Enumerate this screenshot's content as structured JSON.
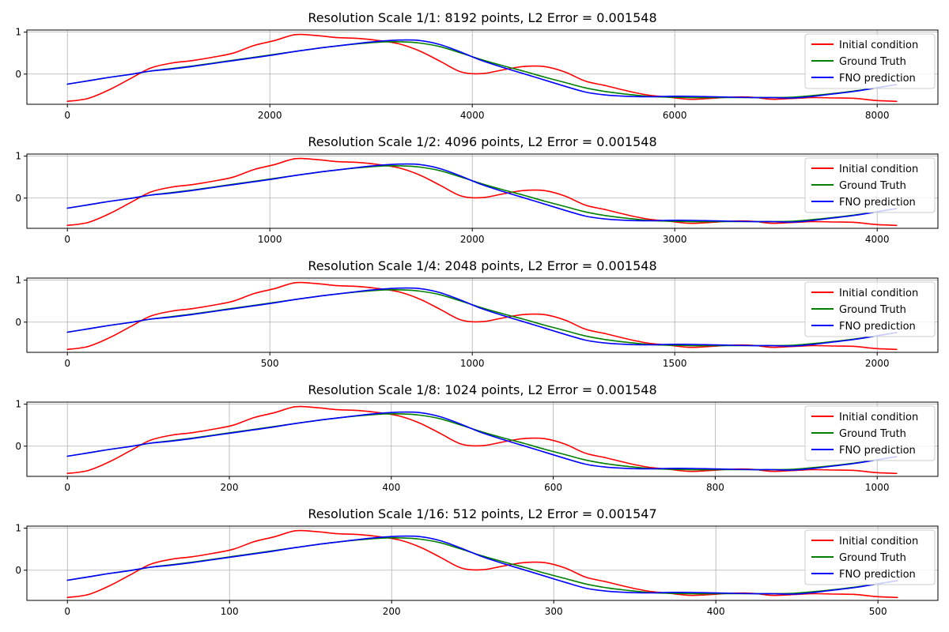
{
  "chart_data": [
    {
      "type": "line",
      "title": "Resolution Scale 1/1: 8192 points, L2 Error = 0.001548",
      "xlim": [
        -400,
        8600
      ],
      "ylim": [
        -0.72,
        1.05
      ],
      "xticks": [
        0,
        2000,
        4000,
        6000,
        8000
      ],
      "xtick_labels": [
        "0",
        "2000",
        "4000",
        "6000",
        "8000"
      ],
      "yticks": [
        1,
        0
      ],
      "ytick_labels": [
        "1",
        "0"
      ],
      "grid": true,
      "legend_position": "upper right",
      "x_max": 8192,
      "series": [
        {
          "name": "Initial condition",
          "color": "#ff0000"
        },
        {
          "name": "Ground Truth",
          "color": "#008000"
        },
        {
          "name": "FNO prediction",
          "color": "#0000ff"
        }
      ]
    },
    {
      "type": "line",
      "title": "Resolution Scale 1/2: 4096 points, L2 Error = 0.001548",
      "xlim": [
        -200,
        4300
      ],
      "ylim": [
        -0.72,
        1.05
      ],
      "xticks": [
        0,
        1000,
        2000,
        3000,
        4000
      ],
      "xtick_labels": [
        "0",
        "1000",
        "2000",
        "3000",
        "4000"
      ],
      "yticks": [
        1,
        0
      ],
      "ytick_labels": [
        "1",
        "0"
      ],
      "grid": true,
      "legend_position": "upper right",
      "x_max": 4096,
      "series": [
        {
          "name": "Initial condition",
          "color": "#ff0000"
        },
        {
          "name": "Ground Truth",
          "color": "#008000"
        },
        {
          "name": "FNO prediction",
          "color": "#0000ff"
        }
      ]
    },
    {
      "type": "line",
      "title": "Resolution Scale 1/4: 2048 points, L2 Error = 0.001548",
      "xlim": [
        -100,
        2150
      ],
      "ylim": [
        -0.72,
        1.05
      ],
      "xticks": [
        0,
        500,
        1000,
        1500,
        2000
      ],
      "xtick_labels": [
        "0",
        "500",
        "1000",
        "1500",
        "2000"
      ],
      "yticks": [
        1,
        0
      ],
      "ytick_labels": [
        "1",
        "0"
      ],
      "grid": true,
      "legend_position": "upper right",
      "x_max": 2048,
      "series": [
        {
          "name": "Initial condition",
          "color": "#ff0000"
        },
        {
          "name": "Ground Truth",
          "color": "#008000"
        },
        {
          "name": "FNO prediction",
          "color": "#0000ff"
        }
      ]
    },
    {
      "type": "line",
      "title": "Resolution Scale 1/8: 1024 points, L2 Error = 0.001548",
      "xlim": [
        -50,
        1075
      ],
      "ylim": [
        -0.72,
        1.05
      ],
      "xticks": [
        0,
        200,
        400,
        600,
        800,
        1000
      ],
      "xtick_labels": [
        "0",
        "200",
        "400",
        "600",
        "800",
        "1000"
      ],
      "yticks": [
        1,
        0
      ],
      "ytick_labels": [
        "1",
        "0"
      ],
      "grid": true,
      "legend_position": "upper right",
      "x_max": 1024,
      "series": [
        {
          "name": "Initial condition",
          "color": "#ff0000"
        },
        {
          "name": "Ground Truth",
          "color": "#008000"
        },
        {
          "name": "FNO prediction",
          "color": "#0000ff"
        }
      ]
    },
    {
      "type": "line",
      "title": "Resolution Scale 1/16: 512 points, L2 Error = 0.001547",
      "xlim": [
        -25,
        537
      ],
      "ylim": [
        -0.72,
        1.05
      ],
      "xticks": [
        0,
        100,
        200,
        300,
        400,
        500
      ],
      "xtick_labels": [
        "0",
        "100",
        "200",
        "300",
        "400",
        "500"
      ],
      "yticks": [
        1,
        0
      ],
      "ytick_labels": [
        "1",
        "0"
      ],
      "grid": true,
      "legend_position": "upper right",
      "x_max": 512,
      "series": [
        {
          "name": "Initial condition",
          "color": "#ff0000"
        },
        {
          "name": "Ground Truth",
          "color": "#008000"
        },
        {
          "name": "FNO prediction",
          "color": "#0000ff"
        }
      ]
    }
  ],
  "curve_shape_fraction": {
    "x": [
      0,
      0.025,
      0.05,
      0.075,
      0.1,
      0.125,
      0.15,
      0.175,
      0.2,
      0.225,
      0.25,
      0.275,
      0.3,
      0.325,
      0.35,
      0.375,
      0.4,
      0.425,
      0.45,
      0.475,
      0.5,
      0.525,
      0.55,
      0.575,
      0.6,
      0.625,
      0.65,
      0.675,
      0.7,
      0.725,
      0.75,
      0.775,
      0.8,
      0.825,
      0.85,
      0.875,
      0.9,
      0.925,
      0.95,
      0.975,
      1.0
    ],
    "initial_condition": [
      -0.65,
      -0.58,
      -0.38,
      -0.12,
      0.14,
      0.26,
      0.32,
      0.4,
      0.5,
      0.68,
      0.8,
      0.94,
      0.92,
      0.87,
      0.85,
      0.8,
      0.72,
      0.55,
      0.3,
      0.05,
      0.01,
      0.1,
      0.18,
      0.18,
      0.05,
      -0.17,
      -0.28,
      -0.4,
      -0.5,
      -0.55,
      -0.6,
      -0.58,
      -0.55,
      -0.55,
      -0.6,
      -0.58,
      -0.56,
      -0.57,
      -0.58,
      -0.63,
      -0.65
    ],
    "ground_truth": [
      -0.24,
      -0.16,
      -0.08,
      -0.01,
      0.07,
      0.13,
      0.19,
      0.26,
      0.33,
      0.4,
      0.47,
      0.54,
      0.61,
      0.67,
      0.72,
      0.76,
      0.77,
      0.74,
      0.65,
      0.5,
      0.34,
      0.2,
      0.07,
      -0.07,
      -0.2,
      -0.33,
      -0.42,
      -0.48,
      -0.53,
      -0.55,
      -0.56,
      -0.56,
      -0.56,
      -0.56,
      -0.56,
      -0.55,
      -0.51,
      -0.46,
      -0.4,
      -0.33,
      -0.25
    ],
    "fno_prediction": [
      -0.24,
      -0.16,
      -0.08,
      -0.01,
      0.07,
      0.12,
      0.18,
      0.25,
      0.32,
      0.39,
      0.46,
      0.54,
      0.61,
      0.67,
      0.73,
      0.78,
      0.81,
      0.8,
      0.7,
      0.52,
      0.32,
      0.16,
      0.01,
      -0.14,
      -0.29,
      -0.43,
      -0.5,
      -0.53,
      -0.54,
      -0.53,
      -0.53,
      -0.54,
      -0.55,
      -0.56,
      -0.56,
      -0.57,
      -0.53,
      -0.47,
      -0.41,
      -0.33,
      -0.25
    ]
  }
}
